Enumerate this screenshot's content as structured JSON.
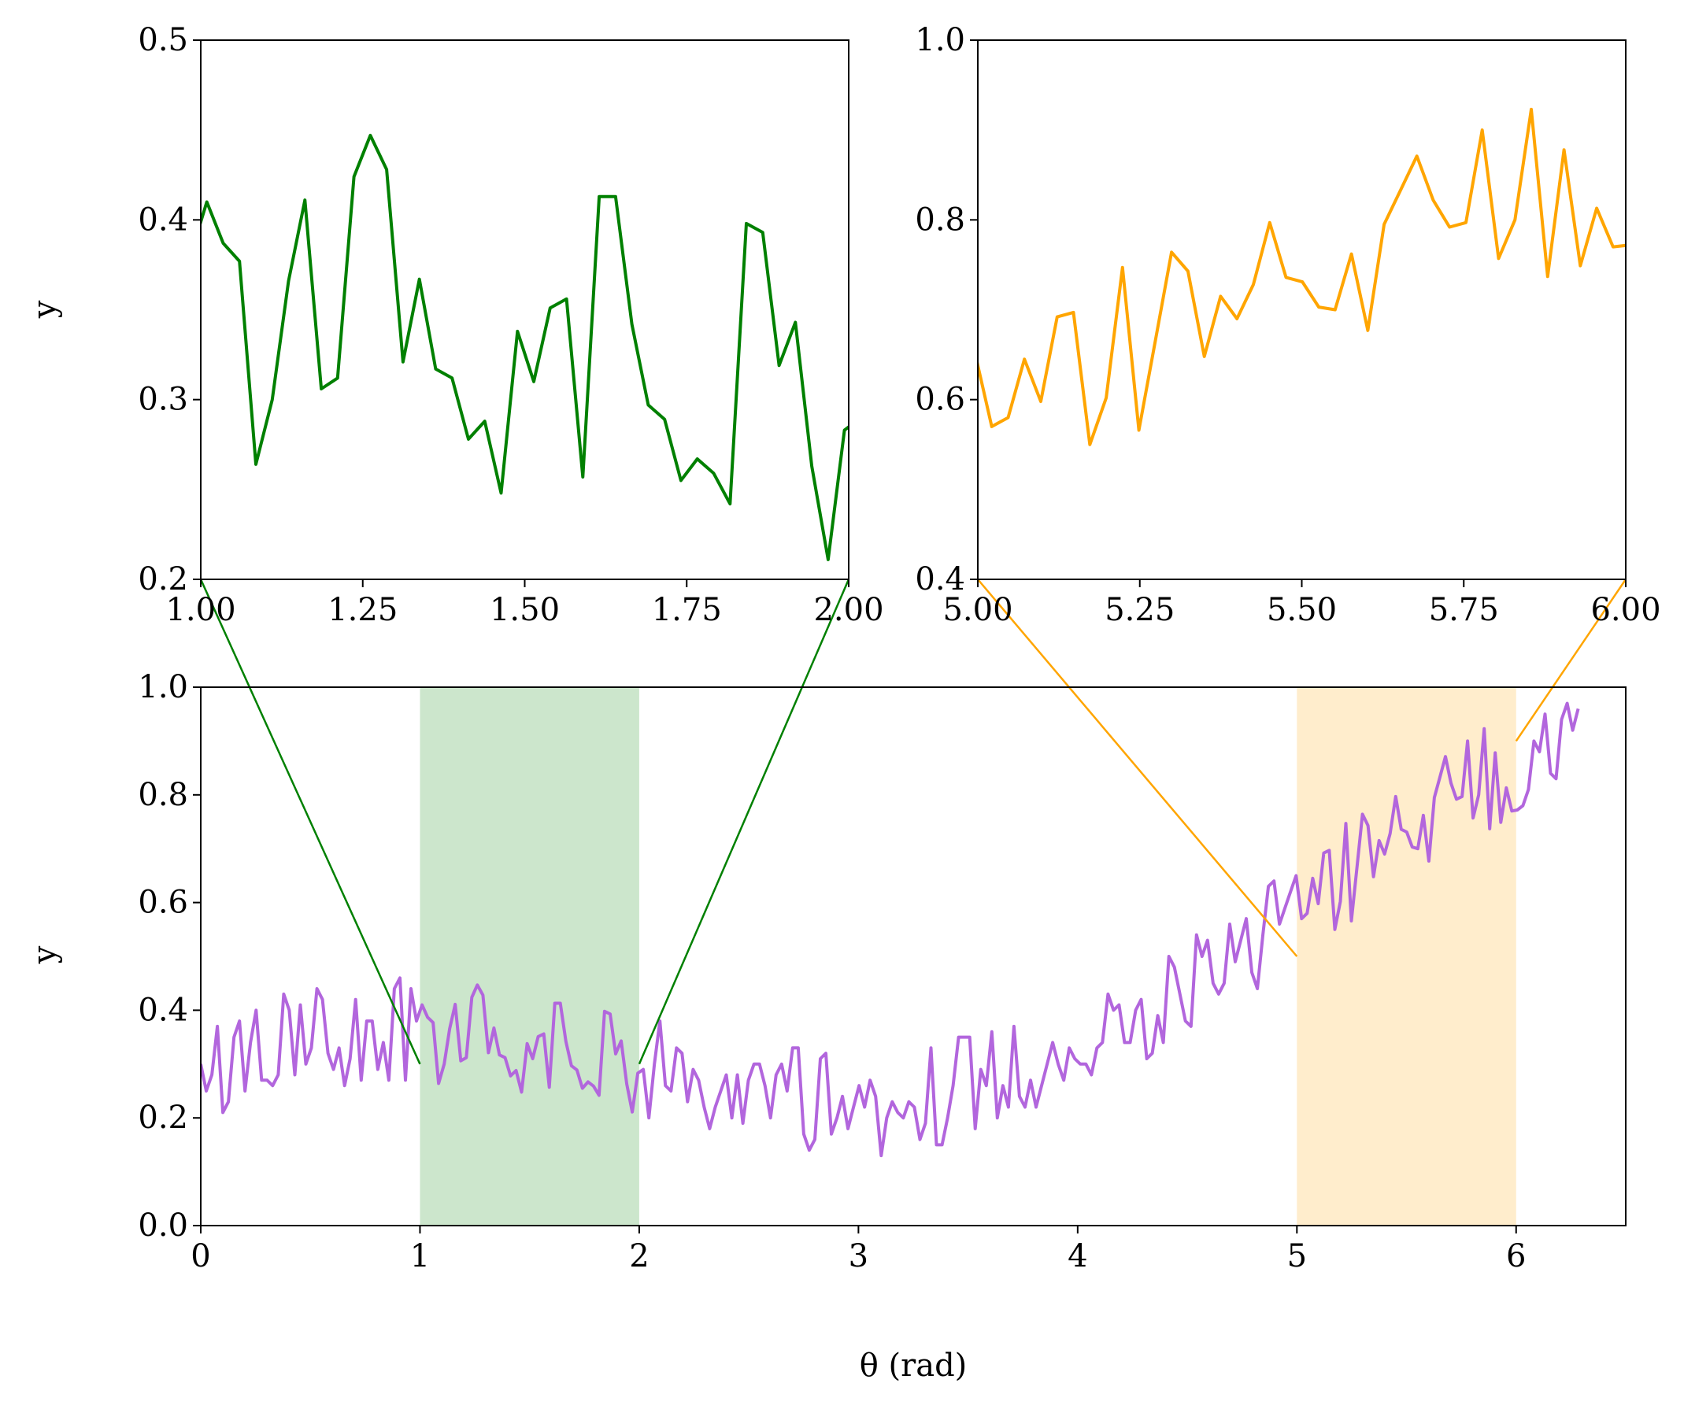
{
  "chart_data": [
    {
      "id": "inset_green",
      "type": "line",
      "title": "",
      "xlabel": "",
      "ylabel": "y",
      "xlim": [
        1.0,
        2.0
      ],
      "ylim": [
        0.2,
        0.5
      ],
      "xticks": [
        "1.00",
        "1.25",
        "1.50",
        "1.75",
        "2.00"
      ],
      "yticks": [
        "0.2",
        "0.3",
        "0.4",
        "0.5"
      ],
      "color": "#008000",
      "source_index_range": [
        40,
        79
      ]
    },
    {
      "id": "inset_orange",
      "type": "line",
      "title": "",
      "xlabel": "",
      "ylabel": "",
      "xlim": [
        5.0,
        6.0
      ],
      "ylim": [
        0.4,
        1.0
      ],
      "xticks": [
        "5.00",
        "5.25",
        "5.50",
        "5.75",
        "6.00"
      ],
      "yticks": [
        "0.4",
        "0.6",
        "0.8",
        "1.0"
      ],
      "color": "#FFA500",
      "source_index_range": [
        199,
        238
      ]
    },
    {
      "id": "main",
      "type": "line",
      "title": "",
      "xlabel": "θ (rad)",
      "ylabel": "y",
      "xlim": [
        0,
        6.5
      ],
      "ylim": [
        0.0,
        1.0
      ],
      "xticks": [
        "0",
        "1",
        "2",
        "3",
        "4",
        "5",
        "6"
      ],
      "yticks": [
        "0.0",
        "0.2",
        "0.4",
        "0.6",
        "0.8",
        "1.0"
      ],
      "grid": false,
      "color": "#B266DD",
      "x_start": 0,
      "x_end": 6.2832,
      "highlight_spans": [
        {
          "range": [
            1,
            2
          ],
          "color": "#008000",
          "alpha": 0.2,
          "connect_to_y": 0.3
        },
        {
          "range": [
            5,
            6
          ],
          "color": "#FFA500",
          "alpha": 0.2,
          "connect_to_y": [
            0.5,
            0.9
          ]
        }
      ],
      "y": [
        0.3,
        0.25,
        0.28,
        0.37,
        0.21,
        0.23,
        0.35,
        0.38,
        0.25,
        0.34,
        0.4,
        0.27,
        0.27,
        0.26,
        0.28,
        0.43,
        0.4,
        0.28,
        0.41,
        0.3,
        0.33,
        0.44,
        0.42,
        0.32,
        0.29,
        0.33,
        0.26,
        0.31,
        0.42,
        0.27,
        0.38,
        0.38,
        0.29,
        0.34,
        0.27,
        0.44,
        0.46,
        0.27,
        0.44,
        0.38,
        0.41,
        0.387,
        0.377,
        0.264,
        0.3,
        0.366,
        0.411,
        0.306,
        0.312,
        0.424,
        0.447,
        0.428,
        0.321,
        0.367,
        0.317,
        0.312,
        0.278,
        0.288,
        0.248,
        0.338,
        0.31,
        0.351,
        0.356,
        0.257,
        0.413,
        0.413,
        0.342,
        0.297,
        0.289,
        0.255,
        0.267,
        0.259,
        0.242,
        0.398,
        0.393,
        0.319,
        0.343,
        0.263,
        0.211,
        0.283,
        0.29,
        0.2,
        0.3,
        0.38,
        0.26,
        0.25,
        0.33,
        0.32,
        0.23,
        0.29,
        0.27,
        0.22,
        0.18,
        0.22,
        0.25,
        0.28,
        0.2,
        0.28,
        0.19,
        0.27,
        0.3,
        0.3,
        0.26,
        0.2,
        0.28,
        0.3,
        0.25,
        0.33,
        0.33,
        0.17,
        0.14,
        0.16,
        0.31,
        0.32,
        0.17,
        0.2,
        0.24,
        0.18,
        0.22,
        0.26,
        0.22,
        0.27,
        0.24,
        0.13,
        0.2,
        0.23,
        0.21,
        0.2,
        0.23,
        0.22,
        0.16,
        0.19,
        0.33,
        0.15,
        0.15,
        0.2,
        0.26,
        0.35,
        0.35,
        0.35,
        0.18,
        0.29,
        0.26,
        0.36,
        0.2,
        0.26,
        0.22,
        0.37,
        0.24,
        0.22,
        0.27,
        0.22,
        0.26,
        0.3,
        0.34,
        0.3,
        0.27,
        0.33,
        0.31,
        0.3,
        0.3,
        0.28,
        0.33,
        0.34,
        0.43,
        0.4,
        0.41,
        0.34,
        0.34,
        0.4,
        0.42,
        0.31,
        0.32,
        0.39,
        0.34,
        0.5,
        0.48,
        0.43,
        0.38,
        0.37,
        0.54,
        0.5,
        0.53,
        0.45,
        0.43,
        0.45,
        0.56,
        0.49,
        0.53,
        0.57,
        0.47,
        0.44,
        0.54,
        0.63,
        0.64,
        0.56,
        0.59,
        0.62,
        0.65,
        0.57,
        0.58,
        0.645,
        0.598,
        0.692,
        0.697,
        0.55,
        0.602,
        0.747,
        0.566,
        0.665,
        0.764,
        0.743,
        0.648,
        0.715,
        0.69,
        0.728,
        0.797,
        0.736,
        0.731,
        0.703,
        0.7,
        0.762,
        0.677,
        0.795,
        0.833,
        0.871,
        0.822,
        0.792,
        0.797,
        0.9,
        0.757,
        0.8,
        0.923,
        0.737,
        0.878,
        0.749,
        0.813,
        0.77,
        0.772,
        0.78,
        0.81,
        0.9,
        0.88,
        0.95,
        0.84,
        0.83,
        0.94,
        0.97,
        0.92,
        0.96
      ]
    }
  ]
}
